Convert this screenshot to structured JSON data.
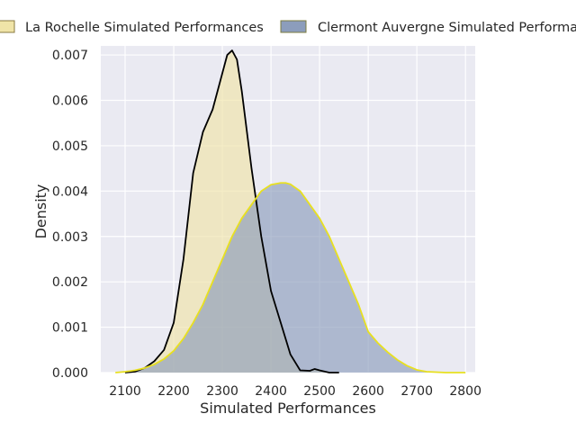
{
  "chart_data": {
    "type": "area",
    "title": "",
    "xlabel": "Simulated Performances",
    "ylabel": "Density",
    "xlim": [
      2050,
      2820
    ],
    "ylim": [
      0,
      0.0072
    ],
    "xticks": [
      2100,
      2200,
      2300,
      2400,
      2500,
      2600,
      2700,
      2800
    ],
    "xtick_labels": [
      "2100",
      "2200",
      "2300",
      "2400",
      "2500",
      "2600",
      "2700",
      "2800"
    ],
    "yticks": [
      0,
      0.001,
      0.002,
      0.003,
      0.004,
      0.005,
      0.006,
      0.007
    ],
    "ytick_labels": [
      "0.000",
      "0.001",
      "0.002",
      "0.003",
      "0.004",
      "0.005",
      "0.006",
      "0.007"
    ],
    "grid": true,
    "legend_position": "top",
    "series": [
      {
        "name": "La Rochelle Simulated Performances",
        "fill_color": "#f0e4a8",
        "line_color": "#000000",
        "x": [
          2100,
          2120,
          2140,
          2160,
          2180,
          2200,
          2220,
          2240,
          2260,
          2280,
          2300,
          2310,
          2320,
          2330,
          2340,
          2360,
          2380,
          2400,
          2420,
          2440,
          2460,
          2480,
          2490,
          2500,
          2520,
          2540
        ],
        "values": [
          0.0,
          2e-05,
          0.0001,
          0.00025,
          0.0005,
          0.0011,
          0.0025,
          0.0044,
          0.0053,
          0.0058,
          0.0066,
          0.007,
          0.0071,
          0.0069,
          0.0062,
          0.0045,
          0.003,
          0.0018,
          0.0011,
          0.0004,
          5e-05,
          4e-05,
          8e-05,
          5e-05,
          0.0,
          0.0
        ]
      },
      {
        "name": "Clermont Auvergne Simulated Performances",
        "fill_color": "#8c9dbc",
        "line_color": "#e8e020",
        "x": [
          2080,
          2100,
          2120,
          2140,
          2160,
          2180,
          2200,
          2220,
          2240,
          2260,
          2280,
          2300,
          2320,
          2340,
          2360,
          2380,
          2400,
          2420,
          2430,
          2440,
          2460,
          2480,
          2500,
          2520,
          2540,
          2560,
          2580,
          2600,
          2620,
          2640,
          2660,
          2680,
          2700,
          2720,
          2740,
          2760,
          2780,
          2800
        ],
        "values": [
          0.0,
          2e-05,
          5e-05,
          0.0001,
          0.00018,
          0.0003,
          0.00048,
          0.00075,
          0.0011,
          0.0015,
          0.002,
          0.0025,
          0.003,
          0.0034,
          0.0037,
          0.004,
          0.00414,
          0.00418,
          0.00418,
          0.00415,
          0.004,
          0.0037,
          0.0034,
          0.003,
          0.0025,
          0.002,
          0.0015,
          0.0009,
          0.00065,
          0.00045,
          0.00028,
          0.00015,
          6e-05,
          2e-05,
          1e-05,
          0.0,
          0.0,
          0.0
        ]
      }
    ]
  }
}
